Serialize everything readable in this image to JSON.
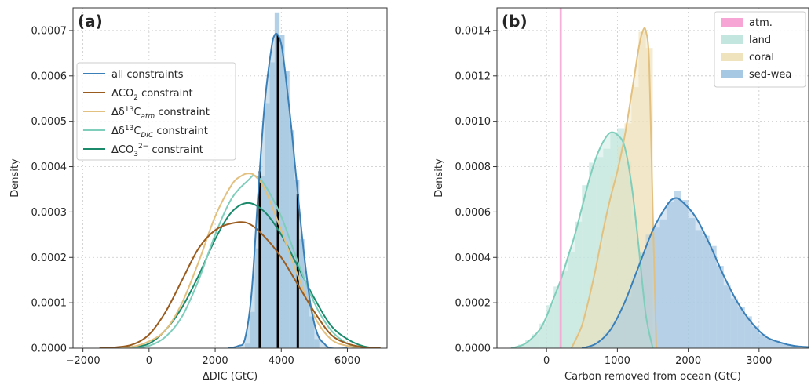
{
  "chart_data": [
    {
      "type": "area",
      "panel_label": "(a)",
      "xlabel": "ΔDIC (GtC)",
      "ylabel": "Density",
      "xlim": [
        -2300,
        7200
      ],
      "ylim": [
        0,
        0.00075
      ],
      "xticks": [
        -2000,
        0,
        2000,
        4000,
        6000
      ],
      "xtick_labels": [
        "−2000",
        "0",
        "2000",
        "4000",
        "6000"
      ],
      "yticks": [
        0,
        0.0001,
        0.0002,
        0.0003,
        0.0004,
        0.0005,
        0.0006,
        0.0007
      ],
      "ytick_labels": [
        "0.0000",
        "0.0001",
        "0.0002",
        "0.0003",
        "0.0004",
        "0.0005",
        "0.0006",
        "0.0007"
      ],
      "grid": true,
      "legend_position": "upper-left",
      "histogram": {
        "color": "#a6c8e2",
        "bins": [
          2900,
          3050,
          3200,
          3350,
          3500,
          3650,
          3800,
          3950,
          4100,
          4250,
          4400,
          4550,
          4700,
          4850,
          5000,
          5150
        ],
        "values": [
          1e-05,
          8e-05,
          0.00022,
          0.00038,
          0.00054,
          0.00063,
          0.00074,
          0.00069,
          0.00061,
          0.00048,
          0.00037,
          0.00024,
          0.00014,
          7e-05,
          2e-05
        ]
      },
      "percentile_lines": {
        "color": "#000000",
        "x": [
          3350,
          3900,
          4500
        ],
        "heights": [
          0.00039,
          0.00068,
          0.00037
        ]
      },
      "series": [
        {
          "name": "all constraints",
          "label_base": "all constraints",
          "label_sup": "",
          "label_sub": "",
          "label_tail": "",
          "color": "#3a7fb8",
          "x": [
            2400,
            2700,
            2900,
            3100,
            3300,
            3500,
            3700,
            3800,
            3900,
            4000,
            4100,
            4300,
            4500,
            4700,
            4900,
            5100,
            5300,
            5500,
            6000
          ],
          "y": [
            0,
            5e-06,
            2e-05,
            0.00012,
            0.00034,
            0.00054,
            0.00066,
            0.00069,
            0.00069,
            0.00067,
            0.00062,
            0.00049,
            0.00034,
            0.0002,
            9e-05,
            3e-05,
            1e-05,
            0,
            0
          ]
        },
        {
          "name": "ΔCO₂ constraint",
          "label_base": "ΔCO",
          "label_sup": "",
          "label_sub": "2",
          "label_tail": " constraint",
          "color": "#9a5b1e",
          "x": [
            -1500,
            -1000,
            -500,
            0,
            500,
            1000,
            1500,
            2000,
            2500,
            3000,
            3500,
            4000,
            4500,
            5000,
            5500,
            6000,
            6500,
            7000
          ],
          "y": [
            0,
            2e-06,
            8e-06,
            3e-05,
            8e-05,
            0.00015,
            0.00022,
            0.00026,
            0.000275,
            0.000275,
            0.000245,
            0.0002,
            0.00014,
            8e-05,
            3e-05,
            1e-05,
            2e-06,
            0
          ]
        },
        {
          "name": "Δδ13C_atm constraint",
          "label_base": "Δδ",
          "label_sup": "13",
          "label_sub": "atm",
          "label_tail": " constraint",
          "color": "#e2c07f",
          "x": [
            -1000,
            -500,
            0,
            500,
            1000,
            1500,
            2000,
            2500,
            2800,
            3000,
            3200,
            3500,
            4000,
            4500,
            5000,
            5500,
            6000,
            6500
          ],
          "y": [
            0,
            3e-06,
            1.5e-05,
            4e-05,
            0.0001,
            0.00019,
            0.00029,
            0.00036,
            0.00038,
            0.000385,
            0.00038,
            0.00035,
            0.00026,
            0.00016,
            7e-05,
            2e-05,
            5e-06,
            0
          ]
        },
        {
          "name": "Δδ13C_DIC constraint",
          "label_base": "Δδ",
          "label_sup": "13",
          "label_sub": "DIC",
          "label_tail": " constraint",
          "color": "#7fcdbb",
          "x": [
            -500,
            0,
            500,
            1000,
            1500,
            2000,
            2500,
            3000,
            3200,
            3500,
            4000,
            4500,
            5000,
            5500,
            6000,
            6500
          ],
          "y": [
            0,
            5e-06,
            2.5e-05,
            7e-05,
            0.00015,
            0.00025,
            0.00033,
            0.00037,
            0.00038,
            0.00036,
            0.00029,
            0.00019,
            0.0001,
            4e-05,
            1e-05,
            0
          ]
        },
        {
          "name": "ΔCO3 2− constraint",
          "label_base": "ΔCO",
          "label_sup": "2−",
          "label_sub": "3",
          "label_tail": "  constraint",
          "color": "#1b8a6b",
          "x": [
            -1000,
            -500,
            0,
            500,
            1000,
            1500,
            2000,
            2500,
            3000,
            3500,
            4000,
            4500,
            5000,
            5500,
            6000,
            6500,
            7000
          ],
          "y": [
            0,
            3e-06,
            1e-05,
            4e-05,
            9e-05,
            0.00016,
            0.00024,
            0.0003,
            0.00032,
            0.0003,
            0.00025,
            0.00018,
            0.00011,
            5e-05,
            2e-05,
            4e-06,
            0
          ]
        }
      ]
    },
    {
      "type": "area",
      "panel_label": "(b)",
      "xlabel": "Carbon removed from ocean (GtC)",
      "ylabel": "Density",
      "xlim": [
        -700,
        3700
      ],
      "ylim": [
        0,
        0.0015
      ],
      "xticks": [
        0,
        1000,
        2000,
        3000
      ],
      "xtick_labels": [
        "0",
        "1000",
        "2000",
        "3000"
      ],
      "yticks": [
        0,
        0.0002,
        0.0004,
        0.0006,
        0.0008,
        0.001,
        0.0012,
        0.0014
      ],
      "ytick_labels": [
        "0.0000",
        "0.0002",
        "0.0004",
        "0.0006",
        "0.0008",
        "0.0010",
        "0.0012",
        "0.0014"
      ],
      "grid": true,
      "legend_position": "upper-right",
      "series": [
        {
          "name": "atm.",
          "hist_color": "#f6a5d4",
          "line_color": "#f08cc8",
          "vline": 200,
          "bar_width": 30
        },
        {
          "name": "land",
          "hist_color": "#c3e6de",
          "line_color": "#7fcdbb",
          "x": [
            -500,
            -300,
            -100,
            0,
            100,
            200,
            300,
            400,
            500,
            600,
            700,
            800,
            900,
            1000,
            1100,
            1200,
            1300,
            1400,
            1500
          ],
          "y": [
            0,
            2e-05,
            8e-05,
            0.00014,
            0.00022,
            0.0003,
            0.0004,
            0.0005,
            0.00062,
            0.00074,
            0.00084,
            0.00091,
            0.00095,
            0.00094,
            0.00089,
            0.00072,
            0.00045,
            0.00015,
            0
          ]
        },
        {
          "name": "coral",
          "hist_color": "#efe3bd",
          "line_color": "#e2c07f",
          "x": [
            350,
            400,
            500,
            600,
            700,
            800,
            900,
            1000,
            1100,
            1200,
            1300,
            1350,
            1400,
            1450,
            1500,
            1550
          ],
          "y": [
            0,
            3e-05,
            0.0001,
            0.00022,
            0.00036,
            0.00052,
            0.00066,
            0.00078,
            0.00093,
            0.00112,
            0.00132,
            0.00139,
            0.0014,
            0.00125,
            0.0006,
            0
          ]
        },
        {
          "name": "sed-wea",
          "hist_color": "#a6c8e2",
          "line_color": "#3a7fb8",
          "x": [
            500,
            700,
            900,
            1100,
            1300,
            1500,
            1700,
            1800,
            1900,
            2100,
            2300,
            2500,
            2700,
            2900,
            3100,
            3300,
            3500,
            3700
          ],
          "y": [
            0,
            2e-05,
            8e-05,
            0.0002,
            0.00036,
            0.00052,
            0.00063,
            0.00066,
            0.00065,
            0.00058,
            0.00046,
            0.00032,
            0.0002,
            0.00011,
            5e-05,
            2.5e-05,
            1e-05,
            5e-06
          ]
        }
      ]
    }
  ]
}
